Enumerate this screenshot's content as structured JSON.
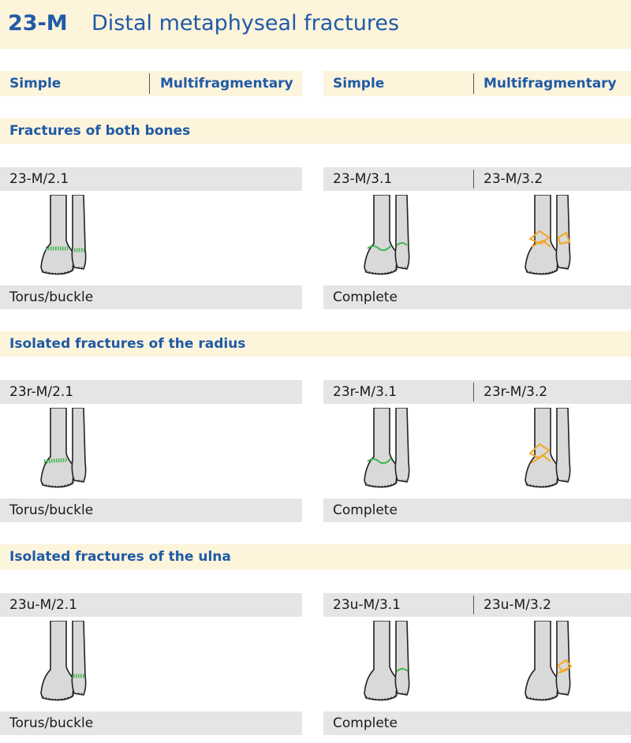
{
  "title": {
    "code": "23-M",
    "text": "Distal metaphyseal fractures"
  },
  "column_headers": {
    "left_simple": "Simple",
    "left_multi": "Multifragmentary",
    "right_simple": "Simple",
    "right_multi": "Multifragmentary"
  },
  "sections": [
    {
      "label": "Fractures of both bones",
      "cells": [
        {
          "prefix": "23",
          "letter": "",
          "suffix": "-M/2.1"
        },
        {
          "prefix": "23",
          "letter": "",
          "suffix": "-M/3.1"
        },
        {
          "prefix": "23",
          "letter": "",
          "suffix": "-M/3.2"
        }
      ],
      "captions": {
        "left": "Torus/buckle",
        "right": "Complete"
      }
    },
    {
      "label": "Isolated fractures of the radius",
      "cells": [
        {
          "prefix": "23",
          "letter": "r",
          "suffix": "-M/2.1"
        },
        {
          "prefix": "23",
          "letter": "r",
          "suffix": "-M/3.1"
        },
        {
          "prefix": "23",
          "letter": "r",
          "suffix": "-M/3.2"
        }
      ],
      "captions": {
        "left": "Torus/buckle",
        "right": "Complete"
      }
    },
    {
      "label": "Isolated fractures of the ulna",
      "cells": [
        {
          "prefix": "23",
          "letter": "u",
          "suffix": "-M/2.1"
        },
        {
          "prefix": "23",
          "letter": "u",
          "suffix": "-M/3.1"
        },
        {
          "prefix": "23",
          "letter": "u",
          "suffix": "-M/3.2"
        }
      ],
      "captions": {
        "left": "Torus/buckle",
        "right": "Complete"
      }
    }
  ],
  "colors": {
    "title_blue": "#1f5aa6",
    "header_bg": "#fdf4dc",
    "code_bar_bg": "#e5e5e5",
    "code_letter_red": "#d0201b",
    "fracture_green": "#3fb54a",
    "fracture_orange": "#f5a623"
  }
}
